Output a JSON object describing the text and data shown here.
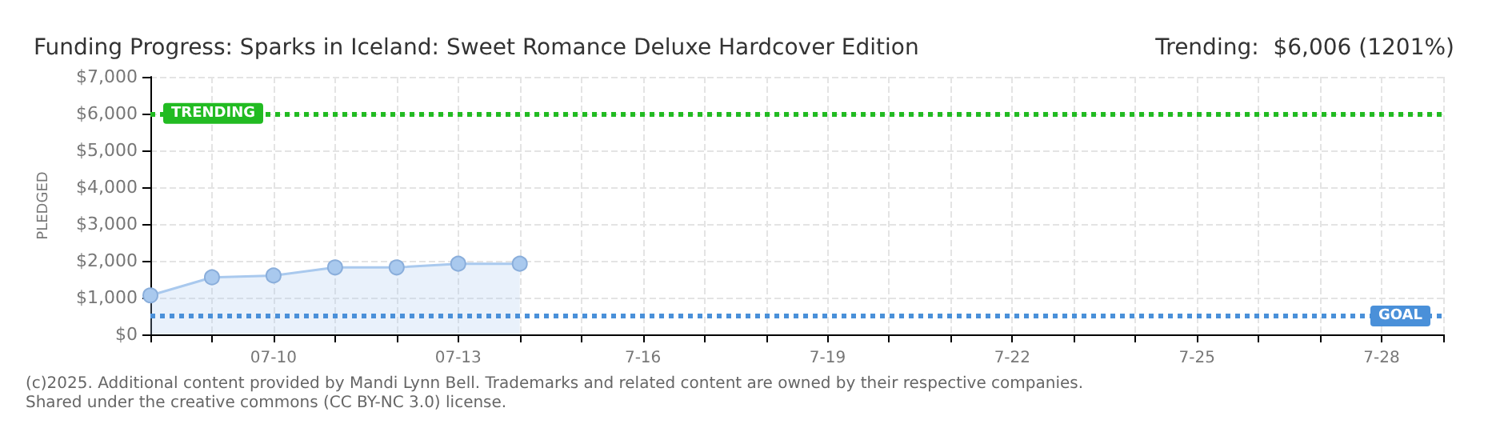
{
  "chart_data": {
    "type": "area",
    "title": "Funding Progress: Sparks in Iceland: Sweet Romance Deluxe Hardcover Edition",
    "subtitle": "Trending:  $6,006 (1201%)",
    "ylabel": "PLEDGED",
    "categories": [
      null,
      null,
      "07-10",
      null,
      null,
      "07-13",
      null,
      null,
      "7-16",
      null,
      null,
      "7-19",
      null,
      null,
      "7-22",
      null,
      null,
      "7-25",
      null,
      null,
      "7-28",
      null
    ],
    "series": [
      {
        "color": "#a9c9ee",
        "values": [
          1060,
          1550,
          1600,
          1820,
          1820,
          1920,
          1920,
          null,
          null,
          null,
          null,
          null,
          null,
          null,
          null,
          null,
          null,
          null,
          null,
          null,
          null,
          null
        ]
      }
    ],
    "ylim": [
      0,
      7000
    ],
    "yticks": [
      {
        "value": 0,
        "label": "$0"
      },
      {
        "value": 1000,
        "label": "$1,000"
      },
      {
        "value": 2000,
        "label": "$2,000"
      },
      {
        "value": 3000,
        "label": "$3,000"
      },
      {
        "value": 4000,
        "label": "$4,000"
      },
      {
        "value": 5000,
        "label": "$5,000"
      },
      {
        "value": 6000,
        "label": "$6,000"
      },
      {
        "value": 7000,
        "label": "$7,000"
      }
    ],
    "ref_lines": [
      {
        "axis": "y",
        "value": 6006,
        "label": "TRENDING",
        "color": "#22bb22",
        "line_style": "dotted"
      },
      {
        "axis": "y",
        "value": 500,
        "label": "GOAL",
        "color": "#4a90d9",
        "line_style": "dotted"
      }
    ],
    "grid": true,
    "marker": "circle",
    "annotations": [
      "(c)2025. Additional content provided by Mandi Lynn Bell. Trademarks and related content are owned by their respective companies.",
      "Shared under the creative commons (CC BY-NC 3.0) license."
    ]
  }
}
